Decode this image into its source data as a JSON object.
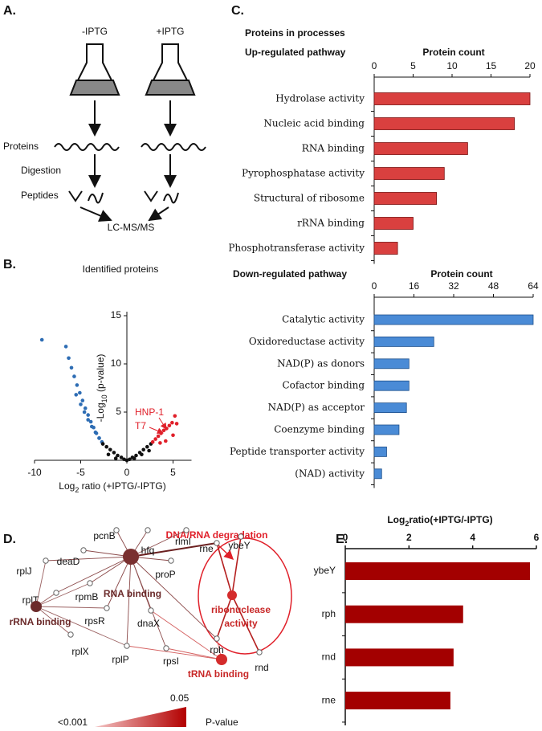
{
  "panels": [
    "A.",
    "B.",
    "C.",
    "D.",
    "E."
  ],
  "workflow": {
    "conditions": [
      "-IPTG",
      "+IPTG"
    ],
    "steps": [
      "Proteins",
      "Digestion",
      "Peptides"
    ],
    "output": "LC-MS/MS"
  },
  "chart_data": [
    {
      "type": "scatter",
      "title": "Identified proteins",
      "x_label": [
        "Log",
        "2",
        " ratio (+IPTG/-IPTG)"
      ],
      "y_label": [
        "-Log",
        "10",
        " (p-value)"
      ],
      "xlim": [
        -10,
        7
      ],
      "ylim": [
        0,
        15
      ],
      "xticks": [
        -10,
        -5,
        0,
        5
      ],
      "yticks": [
        5,
        10,
        15
      ],
      "annotations": [
        "HNP-1",
        "T7"
      ],
      "series": [
        {
          "color": "#2e6db4",
          "x": [
            -9.2,
            -6.6,
            -6.3,
            -6.0,
            -5.7,
            -5.4,
            -5.1,
            -4.8,
            -4.5,
            -4.2,
            -3.9,
            -3.6,
            -3.3,
            -3.0,
            -5.5,
            -5.0,
            -4.6,
            -4.2,
            -3.8,
            -3.4,
            -3.0,
            -2.7
          ],
          "values": [
            12.5,
            11.8,
            10.6,
            9.6,
            8.7,
            7.8,
            7.0,
            6.2,
            5.4,
            4.7,
            4.0,
            3.4,
            2.8,
            2.3,
            6.8,
            5.8,
            5.0,
            4.2,
            3.5,
            2.9,
            2.3,
            1.9
          ]
        },
        {
          "color": "#111111",
          "x": [
            -2.6,
            -2.2,
            -1.8,
            -1.4,
            -1.0,
            -0.6,
            -0.3,
            0,
            0.3,
            0.6,
            1.0,
            1.4,
            1.8,
            2.2,
            2.6,
            -2.0,
            -1.2,
            0.8,
            1.6,
            2.4
          ],
          "values": [
            1.7,
            1.4,
            1.1,
            0.8,
            0.5,
            0.3,
            0.1,
            0,
            0.1,
            0.3,
            0.5,
            0.8,
            1.1,
            1.4,
            1.7,
            0.6,
            0.2,
            0.2,
            0.6,
            1.0
          ]
        },
        {
          "color": "#e0202a",
          "x": [
            2.8,
            3.1,
            3.4,
            3.7,
            4.0,
            4.3,
            4.6,
            4.9,
            5.2,
            5.4,
            3.6,
            4.2,
            5.0
          ],
          "values": [
            1.9,
            2.2,
            2.5,
            2.8,
            3.1,
            3.3,
            3.6,
            3.9,
            4.6,
            3.8,
            1.8,
            2.0,
            2.6
          ]
        }
      ]
    },
    {
      "type": "bar",
      "orientation": "horizontal",
      "title": "Proteins in processes",
      "subtitle": "Up-regulated pathway",
      "x_label": "Protein count",
      "categories": [
        "Hydrolase activity",
        "Nucleic acid binding",
        "RNA binding",
        "Pyrophosphatase activity",
        "Structural of ribosome",
        "rRNA binding",
        "Phosphotransferase activity"
      ],
      "values": [
        20,
        18,
        12,
        9,
        8,
        5,
        3
      ],
      "color": "#d9403f",
      "xlim": [
        0,
        20
      ],
      "xticks": [
        0,
        5,
        10,
        15,
        20
      ]
    },
    {
      "type": "bar",
      "orientation": "horizontal",
      "title": "Down-regulated pathway",
      "x_label": "Protein count",
      "categories": [
        "Catalytic activity",
        "Oxidoreductase activity",
        "NAD(P) as donors",
        "Cofactor binding",
        "NAD(P) as acceptor",
        "Coenzyme binding",
        "Peptide transporter activity",
        "(NAD) activity"
      ],
      "values": [
        64,
        24,
        14,
        14,
        13,
        10,
        5,
        3
      ],
      "color": "#4a8bd6",
      "xlim": [
        0,
        64
      ],
      "xticks": [
        0,
        16,
        32,
        48,
        64
      ]
    },
    {
      "type": "bar",
      "orientation": "horizontal",
      "title": [
        "Log",
        "2",
        "ratio(+IPTG/-IPTG)"
      ],
      "categories": [
        "ybeY",
        "rph",
        "rnd",
        "rne"
      ],
      "values": [
        5.8,
        3.7,
        3.4,
        3.3
      ],
      "color": "#a30000",
      "xlim": [
        0,
        6
      ],
      "xticks": [
        0,
        2,
        4,
        6
      ]
    }
  ],
  "network": {
    "title": "DNA/RNA degradation",
    "hubs": [
      [
        "RNA binding"
      ],
      [
        "rRNA binding"
      ],
      [
        "tRNA binding"
      ],
      [
        "ribonuclease",
        "activity"
      ]
    ],
    "genes": [
      "rplJ",
      "deaD",
      "pcnB",
      "hfq",
      "rlmI",
      "rne",
      "ybeY",
      "proP",
      "rplT",
      "rpmB",
      "rpsR",
      "dnaX",
      "rph",
      "rnd",
      "rplX",
      "rplP",
      "rpsI"
    ],
    "legend": {
      "low": "<0.001",
      "high": "0.05",
      "label": "P-value"
    }
  }
}
